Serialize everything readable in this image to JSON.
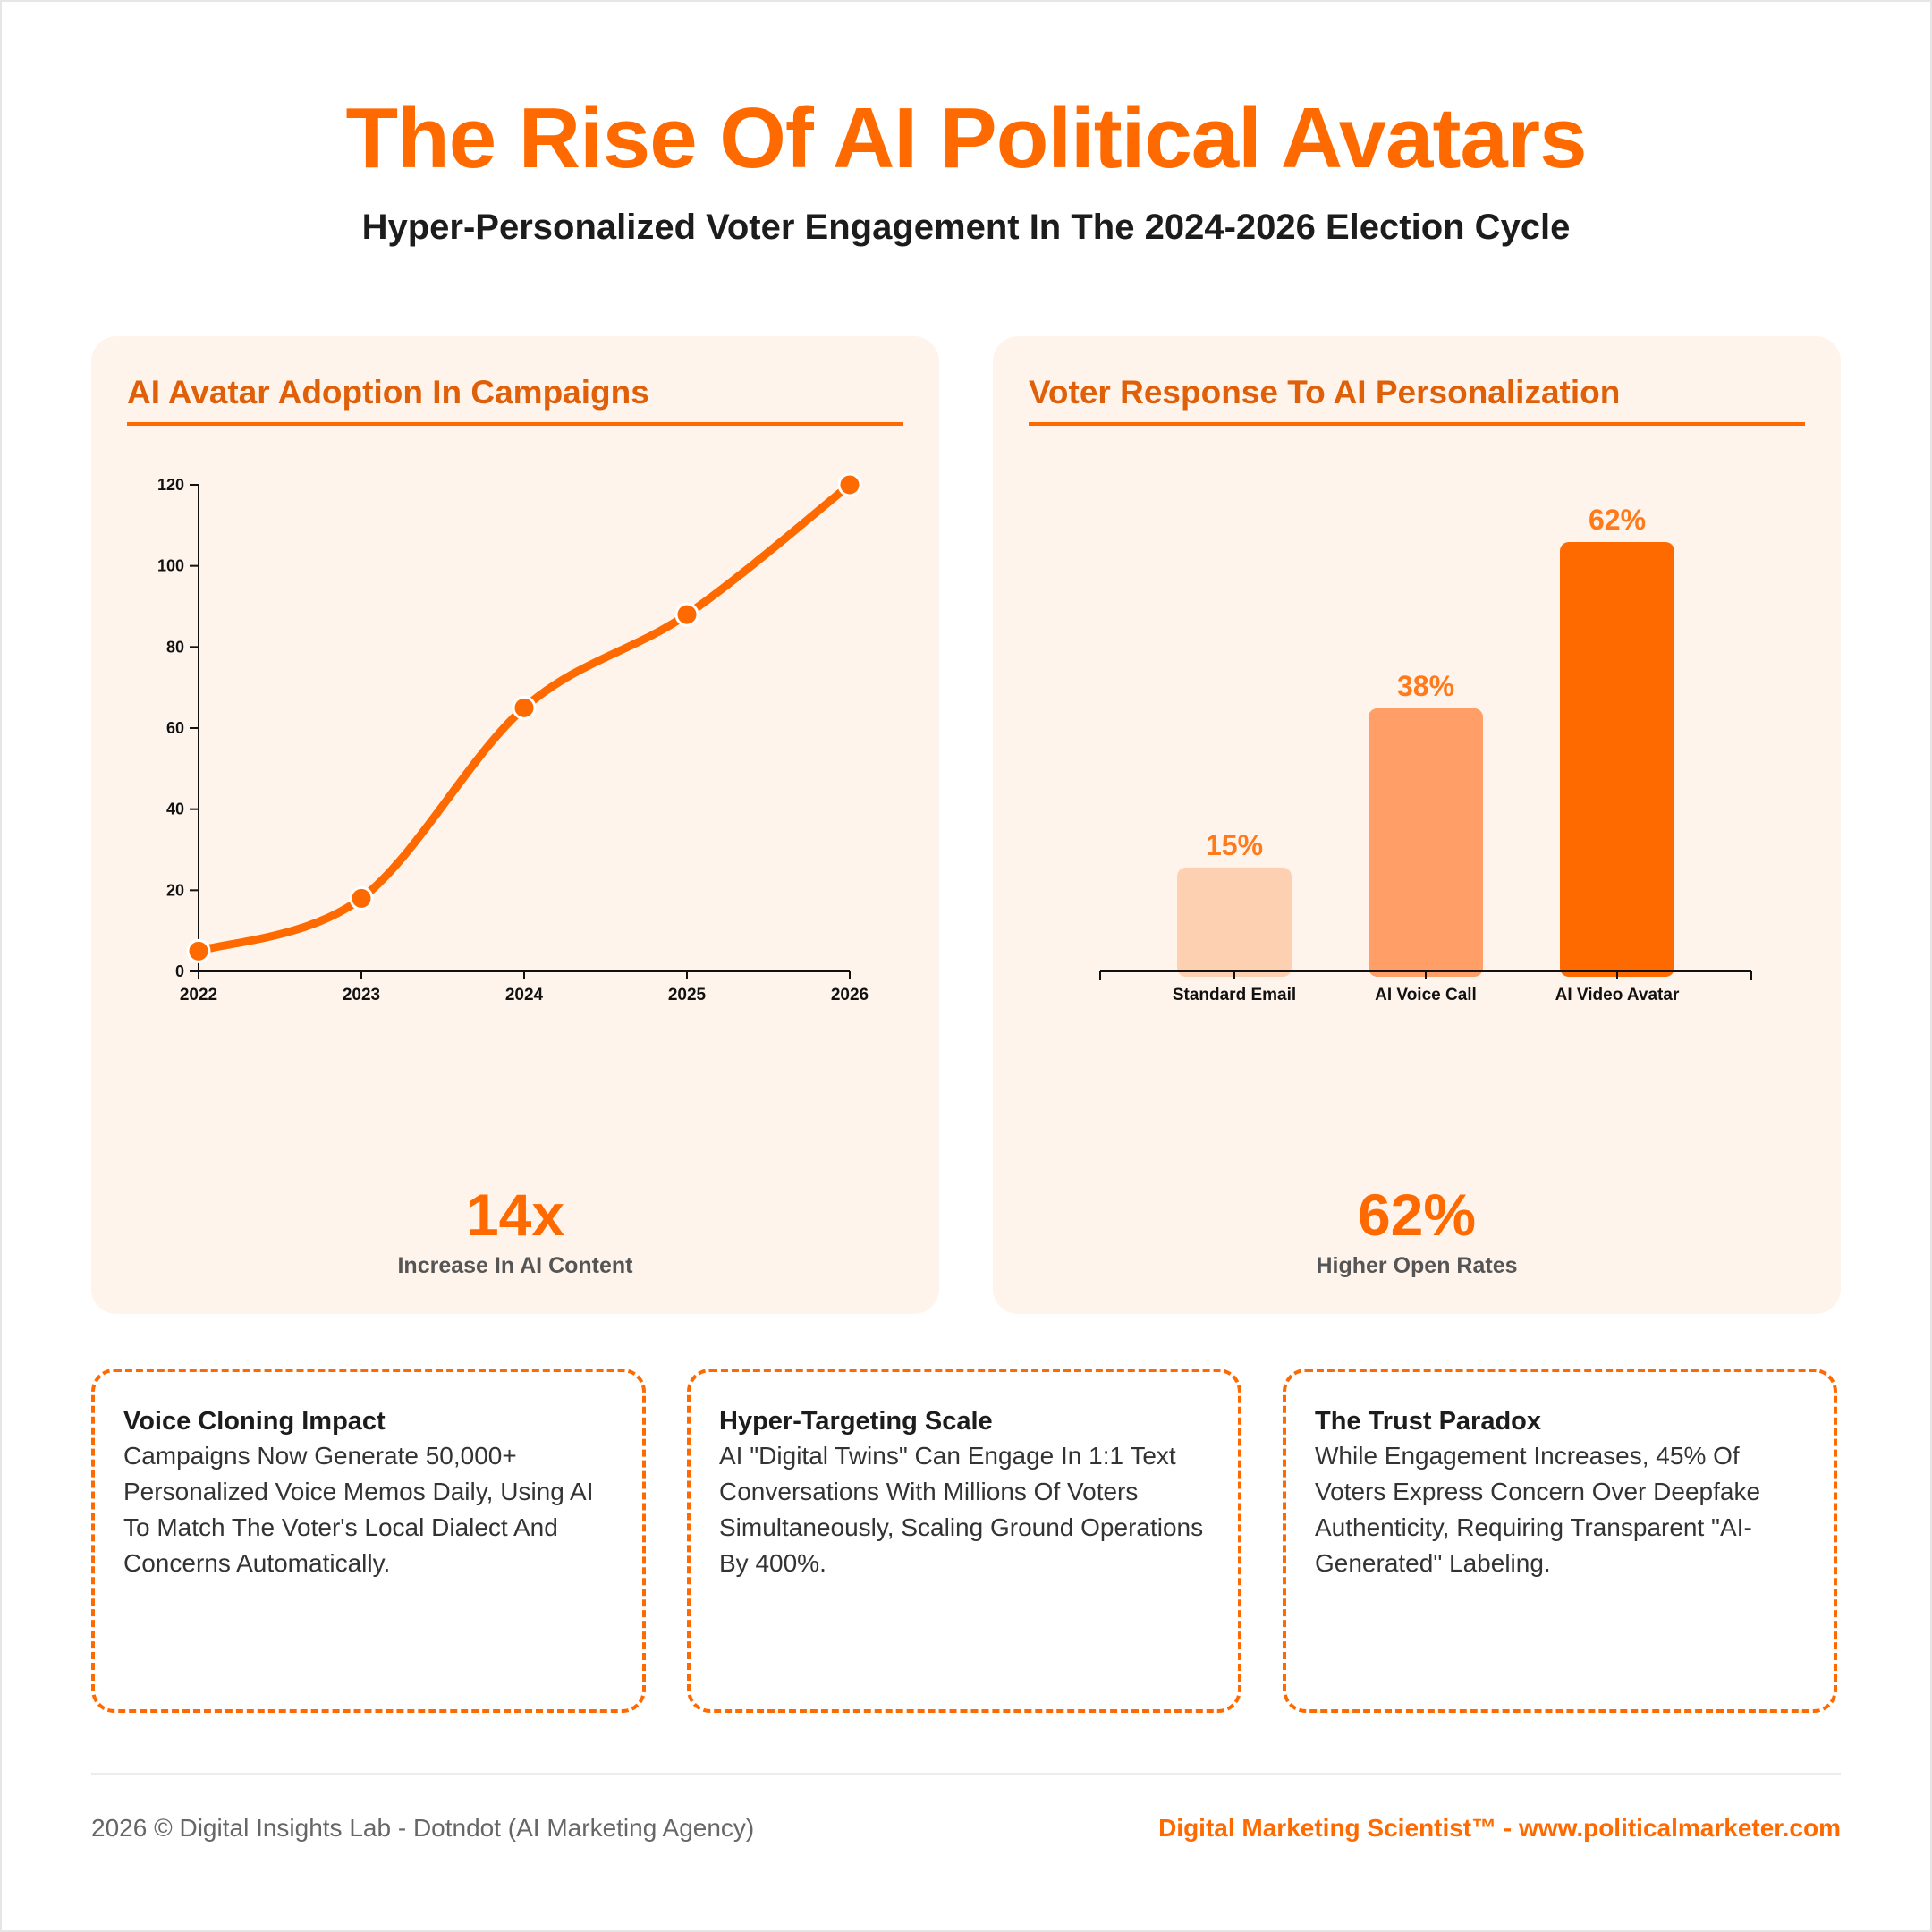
{
  "header": {
    "title": "The Rise Of AI Political Avatars",
    "subtitle": "Hyper-Personalized Voter Engagement In The 2024-2026 Election Cycle"
  },
  "colors": {
    "accent": "#ff6a00",
    "card_bg": "#fef4ec",
    "bar_light": "#fdd0b1",
    "bar_mid": "#ff9e66",
    "bar_dark": "#ff6a00"
  },
  "cards": {
    "adoption": {
      "title": "AI Avatar Adoption In Campaigns",
      "stat_value": "14x",
      "stat_label": "Increase In AI Content"
    },
    "response": {
      "title": "Voter Response To AI Personalization",
      "stat_value": "62%",
      "stat_label": "Higher Open Rates"
    }
  },
  "chart_data": [
    {
      "type": "line",
      "title": "AI Avatar Adoption In Campaigns",
      "x": [
        "2022",
        "2023",
        "2024",
        "2025",
        "2026"
      ],
      "values": [
        5,
        18,
        65,
        88,
        120
      ],
      "ylim": [
        0,
        120
      ],
      "yticks": [
        0,
        20,
        40,
        60,
        80,
        100,
        120
      ],
      "xlabel": "",
      "ylabel": "",
      "grid": false,
      "color": "#ff6a00"
    },
    {
      "type": "bar",
      "title": "Voter Response To AI Personalization",
      "categories": [
        "Standard Email",
        "AI Voice Call",
        "AI Video Avatar"
      ],
      "values": [
        15,
        38,
        62
      ],
      "data_labels": [
        "15%",
        "38%",
        "62%"
      ],
      "colors": [
        "#fdd0b1",
        "#ff9e66",
        "#ff6a00"
      ],
      "ylim": [
        0,
        62
      ],
      "grid": false
    }
  ],
  "insights": [
    {
      "title": "Voice Cloning Impact",
      "text": "Campaigns Now Generate 50,000+ Personalized Voice Memos Daily, Using AI To Match The Voter's Local Dialect And Concerns Automatically."
    },
    {
      "title": "Hyper-Targeting Scale",
      "text": "AI \"Digital Twins\" Can Engage In 1:1 Text Conversations With Millions Of Voters Simultaneously, Scaling Ground Operations By 400%."
    },
    {
      "title": "The Trust Paradox",
      "text": "While Engagement Increases, 45% Of Voters Express Concern Over Deepfake Authenticity, Requiring Transparent \"AI-Generated\" Labeling."
    }
  ],
  "footer": {
    "left": "2026 © Digital Insights Lab - Dotndot (AI Marketing Agency)",
    "right": "Digital Marketing Scientist™ - www.politicalmarketer.com"
  }
}
